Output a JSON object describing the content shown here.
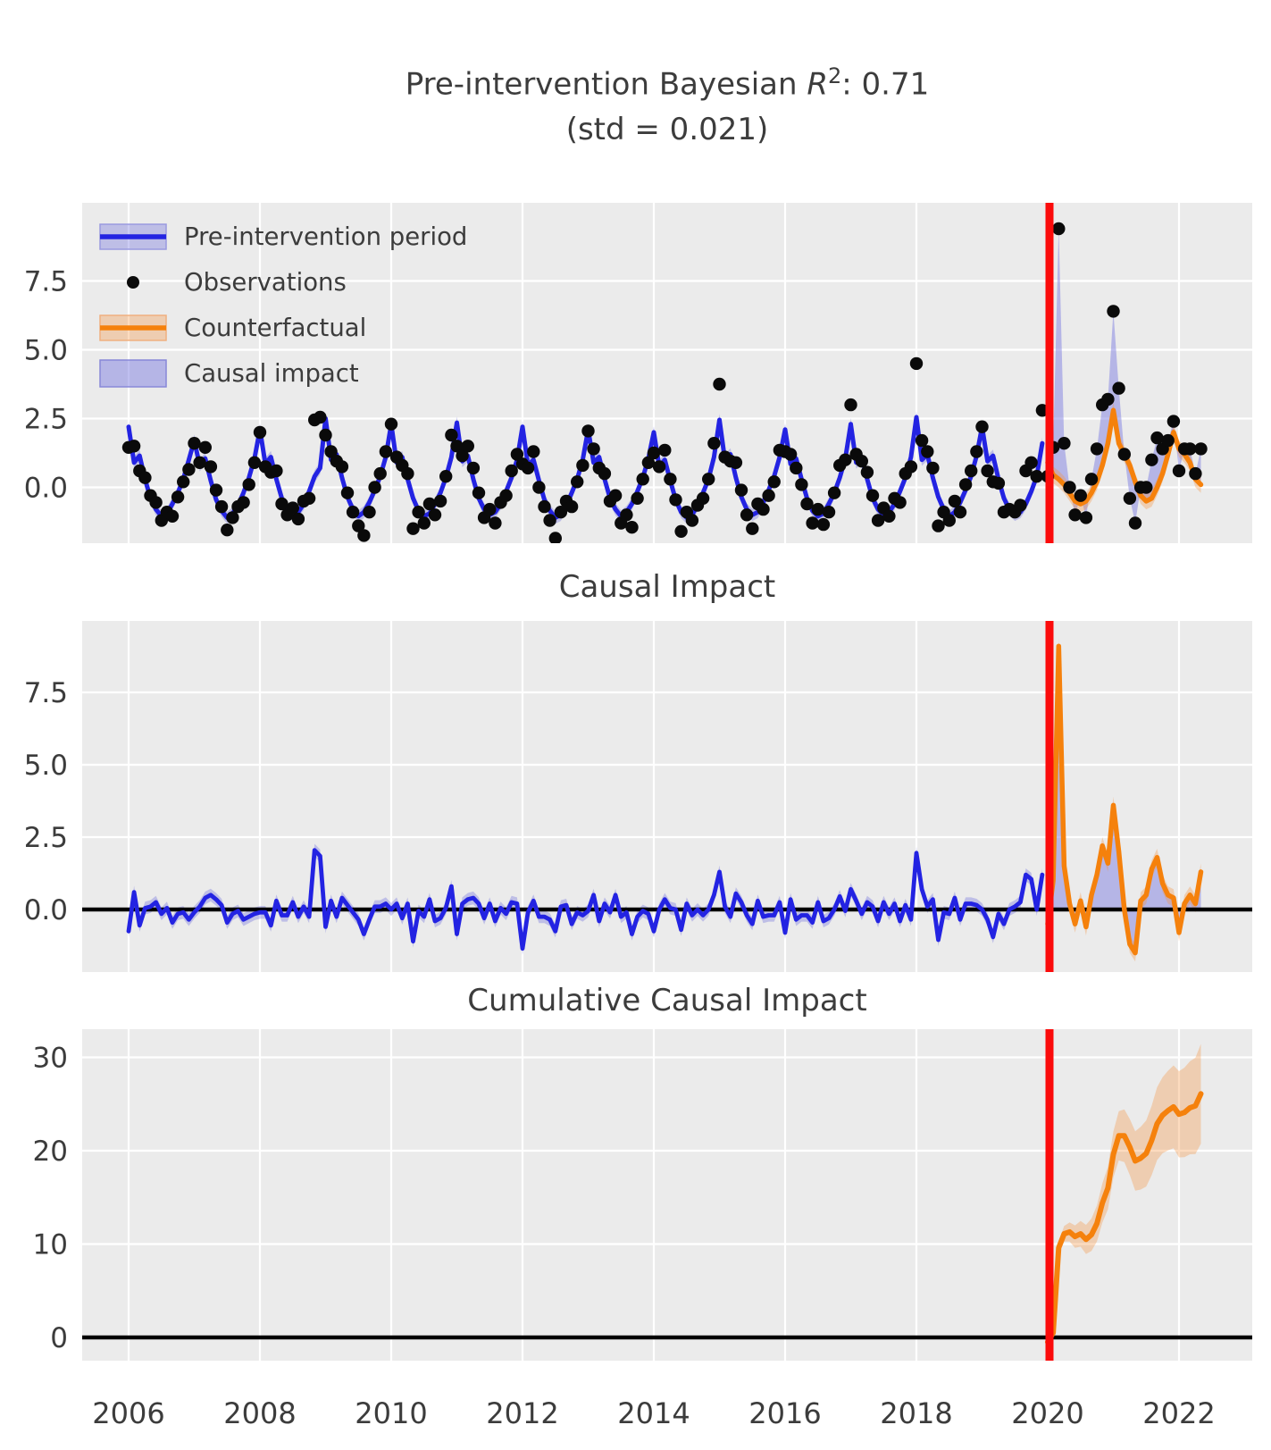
{
  "figure": {
    "title": {
      "prefix": "Pre-intervention Bayesian ",
      "math_var": "R",
      "math_sup": "2",
      "suffix": ": 0.71",
      "line2": "(std = 0.021)"
    },
    "panel_titles": {
      "middle": "Causal Impact",
      "bottom": "Cumulative Causal Impact"
    },
    "legend": [
      {
        "label": "Pre-intervention period",
        "swatch": "blue-line-band"
      },
      {
        "label": "Observations",
        "swatch": "black-dot"
      },
      {
        "label": "Counterfactual",
        "swatch": "orange-line-band"
      },
      {
        "label": "Causal impact",
        "swatch": "blue-patch"
      }
    ],
    "colors": {
      "pre_line": "#2323e2",
      "band_blue": "rgba(85,85,220,0.30)",
      "impact_fill": "rgba(128,128,226,0.50)",
      "counterfactual_line": "#f5810c",
      "band_orange": "rgba(246,145,60,0.33)",
      "observation_dot": "#0a0a0a",
      "intervention_line": "#fb0b0b",
      "zero_line": "#000000",
      "panel_bg": "#ebebeb",
      "grid": "#ffffff",
      "text": "#3c3c3c"
    }
  },
  "chart_data": {
    "type": "line",
    "frequency": "monthly",
    "x_range": [
      2005.25,
      2023.12
    ],
    "xticks": [
      2006,
      2008,
      2010,
      2012,
      2014,
      2016,
      2018,
      2020,
      2022
    ],
    "intervention_x": 2020.0,
    "panels": [
      {
        "id": "observed",
        "title": "Pre-intervention Bayesian R^2: 0.71 (std = 0.021)",
        "ylim": [
          -2.03,
          10.34
        ],
        "yticks": [
          0.0,
          2.5,
          5.0,
          7.5
        ],
        "ytick_labels": [
          "0.0",
          "2.5",
          "5.0",
          "7.5"
        ]
      },
      {
        "id": "pointwise_impact",
        "title": "Causal Impact",
        "ylim": [
          -2.16,
          9.97
        ],
        "yticks": [
          0.0,
          2.5,
          5.0,
          7.5
        ],
        "ytick_labels": [
          "0.0",
          "2.5",
          "5.0",
          "7.5"
        ]
      },
      {
        "id": "cumulative_impact",
        "title": "Cumulative Causal Impact",
        "ylim": [
          -2.49,
          33.0
        ],
        "yticks": [
          0,
          10,
          20,
          30
        ],
        "ytick_labels": [
          "0",
          "10",
          "20",
          "30"
        ]
      }
    ],
    "series": {
      "pre_fit": {
        "name": "Pre-intervention period",
        "start": 2006.0,
        "band_halfwidth": 0.22,
        "values": [
          2.2,
          0.9,
          1.15,
          0.3,
          -0.4,
          -0.8,
          -1.05,
          -0.95,
          -0.6,
          -0.2,
          0.3,
          1.0,
          1.7,
          0.8,
          1.05,
          0.25,
          -0.45,
          -0.85,
          -1.1,
          -0.95,
          -0.65,
          -0.2,
          0.35,
          1.05,
          2.1,
          0.85,
          1.1,
          0.3,
          -0.4,
          -0.8,
          -1.0,
          -0.9,
          -0.6,
          -0.15,
          0.4,
          0.7,
          2.5,
          1.0,
          1.2,
          0.35,
          -0.35,
          -0.8,
          -1.05,
          -0.9,
          -0.55,
          -0.1,
          0.4,
          1.1,
          2.3,
          0.9,
          1.1,
          0.3,
          -0.4,
          -0.85,
          -1.05,
          -0.95,
          -0.6,
          -0.2,
          0.35,
          1.1,
          2.35,
          0.95,
          1.15,
          0.3,
          -0.4,
          -0.8,
          -1.0,
          -0.9,
          -0.6,
          -0.15,
          0.35,
          1.0,
          2.2,
          0.8,
          1.0,
          0.25,
          -0.45,
          -0.85,
          -1.1,
          -1.0,
          -0.65,
          -0.2,
          0.3,
          1.0,
          2.1,
          0.9,
          1.1,
          0.3,
          -0.4,
          -0.8,
          -1.05,
          -0.9,
          -0.6,
          -0.15,
          0.35,
          1.05,
          2.0,
          0.75,
          1.0,
          0.25,
          -0.45,
          -0.9,
          -1.1,
          -1.0,
          -0.65,
          -0.2,
          0.3,
          1.1,
          2.45,
          1.0,
          1.2,
          0.35,
          -0.35,
          -0.8,
          -1.0,
          -0.9,
          -0.55,
          -0.1,
          0.4,
          1.1,
          2.1,
          0.85,
          1.05,
          0.3,
          -0.4,
          -0.85,
          -1.05,
          -0.95,
          -0.6,
          -0.2,
          0.35,
          1.05,
          2.3,
          0.9,
          1.1,
          0.3,
          -0.4,
          -0.8,
          -1.0,
          -0.9,
          -0.6,
          -0.15,
          0.35,
          1.1,
          2.55,
          1.0,
          1.2,
          0.35,
          -0.35,
          -0.8,
          -1.05,
          -0.9,
          -0.55,
          -0.1,
          0.4,
          1.15,
          2.2,
          0.95,
          1.15,
          0.3,
          -0.4,
          -0.8,
          -1.0,
          -0.9,
          -0.6,
          -0.15,
          0.4,
          1.6
        ]
      },
      "observations": {
        "name": "Observations",
        "start": 2006.0,
        "values": [
          1.45,
          1.5,
          0.6,
          0.35,
          -0.3,
          -0.55,
          -1.2,
          -0.9,
          -1.05,
          -0.35,
          0.2,
          0.65,
          1.6,
          0.9,
          1.45,
          0.75,
          -0.1,
          -0.7,
          -1.55,
          -1.1,
          -0.7,
          -0.55,
          0.1,
          0.9,
          2.0,
          0.75,
          0.55,
          0.6,
          -0.6,
          -1.0,
          -0.75,
          -1.15,
          -0.5,
          -0.4,
          2.45,
          2.55,
          1.9,
          1.3,
          0.95,
          0.75,
          -0.2,
          -0.9,
          -1.4,
          -1.75,
          -0.9,
          0.0,
          0.5,
          1.3,
          2.3,
          1.1,
          0.8,
          0.5,
          -1.5,
          -0.9,
          -1.3,
          -0.6,
          -1.0,
          -0.5,
          0.4,
          1.9,
          1.5,
          1.15,
          1.5,
          0.7,
          -0.2,
          -1.1,
          -0.8,
          -1.3,
          -0.55,
          -0.3,
          0.6,
          1.2,
          0.85,
          0.7,
          1.3,
          0.0,
          -0.7,
          -1.2,
          -1.85,
          -0.9,
          -0.5,
          -0.7,
          0.2,
          0.8,
          2.05,
          1.4,
          0.7,
          0.5,
          -0.5,
          -0.3,
          -1.3,
          -1.0,
          -1.45,
          -0.4,
          0.3,
          0.9,
          1.25,
          0.75,
          1.35,
          0.3,
          -0.45,
          -1.6,
          -0.9,
          -1.2,
          -0.65,
          -0.4,
          0.3,
          1.6,
          3.75,
          1.1,
          0.95,
          0.9,
          -0.1,
          -1.0,
          -1.5,
          -0.6,
          -0.8,
          -0.3,
          0.2,
          1.35,
          1.3,
          1.2,
          0.7,
          0.1,
          -0.6,
          -1.3,
          -0.8,
          -1.35,
          -0.9,
          -0.2,
          0.8,
          1.0,
          3.0,
          1.2,
          0.95,
          0.55,
          -0.3,
          -1.2,
          -0.75,
          -1.05,
          -0.4,
          -0.55,
          0.5,
          0.75,
          4.5,
          1.7,
          1.3,
          0.7,
          -1.4,
          -0.9,
          -1.2,
          -0.5,
          -0.9,
          0.1,
          0.6,
          1.3,
          2.2,
          0.6,
          0.2,
          0.15,
          -0.9,
          -0.8,
          -0.9,
          -0.65,
          0.6,
          0.9,
          0.4,
          2.8,
          0.4,
          1.45,
          9.4,
          1.6,
          0.0,
          -1.0,
          -0.3,
          -1.1,
          0.3,
          1.4,
          3.0,
          3.2,
          6.4,
          3.6,
          1.2,
          -0.4,
          -1.3,
          0.0,
          0.0,
          1.0,
          1.8,
          1.4,
          1.7,
          2.4,
          0.6,
          1.4,
          1.4,
          0.5,
          1.4
        ]
      },
      "counterfactual": {
        "name": "Counterfactual",
        "start": 2020.0,
        "band_halfwidth": 0.3,
        "values": [
          0.9,
          0.45,
          0.3,
          0.1,
          -0.2,
          -0.5,
          -0.6,
          -0.5,
          -0.2,
          0.2,
          0.8,
          1.6,
          2.8,
          1.6,
          1.2,
          0.8,
          0.2,
          -0.3,
          -0.5,
          -0.4,
          0.0,
          0.5,
          1.2,
          2.0,
          1.4,
          1.2,
          0.9,
          0.3,
          0.1
        ]
      },
      "derived": {
        "pointwise_impact": "observations minus pre_fit before 2020 and minus counterfactual after 2020",
        "cumulative_impact": "running sum of post-intervention pointwise impact",
        "cumulative_band_halfwidth": "0.3 + 0.18 * months_since_2020"
      }
    }
  }
}
